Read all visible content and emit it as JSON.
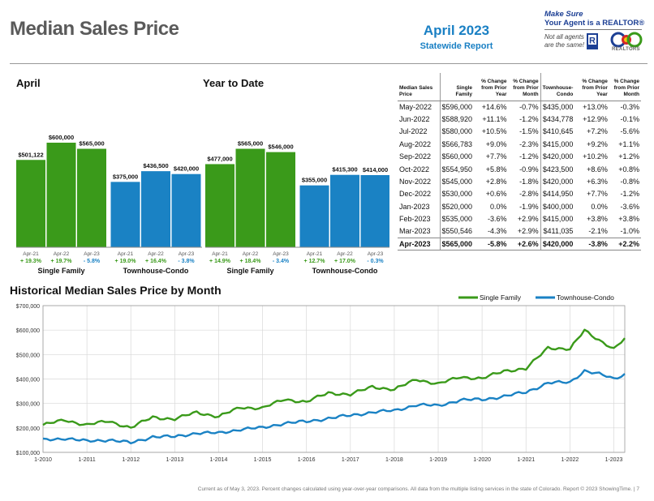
{
  "header": {
    "title": "Median Sales Price",
    "report_month": "April 2023",
    "report_sub": "Statewide Report"
  },
  "realtor": {
    "line1": "Make Sure",
    "line2": "Your Agent is a REALTOR®",
    "note1": "Not all agents",
    "note2": "are the same!",
    "org": "REALTORS"
  },
  "colors": {
    "single_family": "#3a9a1a",
    "townhouse": "#1a82c4",
    "heading_blue": "#1a80c4",
    "title_gray": "#5a5a5a"
  },
  "chart_data": [
    {
      "type": "bar",
      "title": "April",
      "groups": [
        {
          "name": "Single Family",
          "bars": [
            {
              "period": "Apr-21",
              "value": 501122,
              "label": "$501,122",
              "change": "+ 19.3%"
            },
            {
              "period": "Apr-22",
              "value": 600000,
              "label": "$600,000",
              "change": "+ 19.7%"
            },
            {
              "period": "Apr-23",
              "value": 565000,
              "label": "$565,000",
              "change": "- 5.8%"
            }
          ]
        },
        {
          "name": "Townhouse-Condo",
          "bars": [
            {
              "period": "Apr-21",
              "value": 375000,
              "label": "$375,000",
              "change": "+ 19.0%"
            },
            {
              "period": "Apr-22",
              "value": 436500,
              "label": "$436,500",
              "change": "+ 16.4%"
            },
            {
              "period": "Apr-23",
              "value": 420000,
              "label": "$420,000",
              "change": "- 3.8%"
            }
          ]
        }
      ]
    },
    {
      "type": "bar",
      "title": "Year to Date",
      "groups": [
        {
          "name": "Single Family",
          "bars": [
            {
              "period": "Apr-21",
              "value": 477000,
              "label": "$477,000",
              "change": "+ 14.9%"
            },
            {
              "period": "Apr-22",
              "value": 565000,
              "label": "$565,000",
              "change": "+ 18.4%"
            },
            {
              "period": "Apr-23",
              "value": 546000,
              "label": "$546,000",
              "change": "- 3.4%"
            }
          ]
        },
        {
          "name": "Townhouse-Condo",
          "bars": [
            {
              "period": "Apr-21",
              "value": 355000,
              "label": "$355,000",
              "change": "+ 12.7%"
            },
            {
              "period": "Apr-22",
              "value": 415300,
              "label": "$415,300",
              "change": "+ 17.0%"
            },
            {
              "period": "Apr-23",
              "value": 414000,
              "label": "$414,000",
              "change": "- 0.3%"
            }
          ]
        }
      ]
    },
    {
      "type": "table",
      "columns": [
        "Median Sales Price",
        "Single Family",
        "% Change from Prior Year",
        "% Change from Prior Month",
        "Townhouse-Condo",
        "% Change from Prior Year",
        "% Change from Prior Month"
      ],
      "rows": [
        [
          "May-2022",
          "$596,000",
          "+14.6%",
          "-0.7%",
          "$435,000",
          "+13.0%",
          "-0.3%"
        ],
        [
          "Jun-2022",
          "$588,920",
          "+11.1%",
          "-1.2%",
          "$434,778",
          "+12.9%",
          "-0.1%"
        ],
        [
          "Jul-2022",
          "$580,000",
          "+10.5%",
          "-1.5%",
          "$410,645",
          "+7.2%",
          "-5.6%"
        ],
        [
          "Aug-2022",
          "$566,783",
          "+9.0%",
          "-2.3%",
          "$415,000",
          "+9.2%",
          "+1.1%"
        ],
        [
          "Sep-2022",
          "$560,000",
          "+7.7%",
          "-1.2%",
          "$420,000",
          "+10.2%",
          "+1.2%"
        ],
        [
          "Oct-2022",
          "$554,950",
          "+5.8%",
          "-0.9%",
          "$423,500",
          "+8.6%",
          "+0.8%"
        ],
        [
          "Nov-2022",
          "$545,000",
          "+2.8%",
          "-1.8%",
          "$420,000",
          "+6.3%",
          "-0.8%"
        ],
        [
          "Dec-2022",
          "$530,000",
          "+0.6%",
          "-2.8%",
          "$414,950",
          "+7.7%",
          "-1.2%"
        ],
        [
          "Jan-2023",
          "$520,000",
          "0.0%",
          "-1.9%",
          "$400,000",
          "0.0%",
          "-3.6%"
        ],
        [
          "Feb-2023",
          "$535,000",
          "-3.6%",
          "+2.9%",
          "$415,000",
          "+3.8%",
          "+3.8%"
        ],
        [
          "Mar-2023",
          "$550,546",
          "-4.3%",
          "+2.9%",
          "$411,035",
          "-2.1%",
          "-1.0%"
        ],
        [
          "Apr-2023",
          "$565,000",
          "-5.8%",
          "+2.6%",
          "$420,000",
          "-3.8%",
          "+2.2%"
        ]
      ]
    },
    {
      "type": "line",
      "title": "Historical Median Sales Price by Month",
      "ylim": [
        100000,
        700000
      ],
      "y_ticks": [
        "$100,000",
        "$200,000",
        "$300,000",
        "$400,000",
        "$500,000",
        "$600,000",
        "$700,000"
      ],
      "x_ticks": [
        "1-2010",
        "1-2011",
        "1-2012",
        "1-2013",
        "1-2014",
        "1-2015",
        "1-2016",
        "1-2017",
        "1-2018",
        "1-2019",
        "1-2020",
        "1-2021",
        "1-2022",
        "1-2023"
      ],
      "x_start_year": 2010,
      "x_end": "2023-04",
      "grid": true,
      "legend_position": "top-right",
      "series": [
        {
          "name": "Single Family",
          "color": "#3a9a1a",
          "anchors": [
            [
              "2010-01",
              212000
            ],
            [
              "2010-07",
              232000
            ],
            [
              "2011-01",
              212000
            ],
            [
              "2011-07",
              228000
            ],
            [
              "2012-01",
              200000
            ],
            [
              "2012-07",
              245000
            ],
            [
              "2013-01",
              235000
            ],
            [
              "2013-07",
              265000
            ],
            [
              "2014-01",
              245000
            ],
            [
              "2014-07",
              285000
            ],
            [
              "2015-01",
              280000
            ],
            [
              "2015-07",
              318000
            ],
            [
              "2016-01",
              305000
            ],
            [
              "2016-07",
              345000
            ],
            [
              "2017-01",
              335000
            ],
            [
              "2017-07",
              370000
            ],
            [
              "2018-01",
              355000
            ],
            [
              "2018-07",
              400000
            ],
            [
              "2019-01",
              378000
            ],
            [
              "2019-07",
              410000
            ],
            [
              "2020-01",
              400000
            ],
            [
              "2020-07",
              435000
            ],
            [
              "2021-01",
              440000
            ],
            [
              "2021-07",
              530000
            ],
            [
              "2022-01",
              520000
            ],
            [
              "2022-05",
              600000
            ],
            [
              "2022-09",
              560000
            ],
            [
              "2023-01",
              520000
            ],
            [
              "2023-04",
              565000
            ]
          ]
        },
        {
          "name": "Townhouse-Condo",
          "color": "#1a82c4",
          "anchors": [
            [
              "2010-01",
              150000
            ],
            [
              "2010-07",
              158000
            ],
            [
              "2011-01",
              145000
            ],
            [
              "2011-07",
              152000
            ],
            [
              "2012-01",
              138000
            ],
            [
              "2012-07",
              165000
            ],
            [
              "2013-01",
              163000
            ],
            [
              "2013-07",
              180000
            ],
            [
              "2014-01",
              178000
            ],
            [
              "2014-07",
              195000
            ],
            [
              "2015-01",
              200000
            ],
            [
              "2015-07",
              220000
            ],
            [
              "2016-01",
              225000
            ],
            [
              "2016-07",
              240000
            ],
            [
              "2017-01",
              250000
            ],
            [
              "2017-07",
              265000
            ],
            [
              "2018-01",
              270000
            ],
            [
              "2018-07",
              295000
            ],
            [
              "2019-01",
              290000
            ],
            [
              "2019-07",
              315000
            ],
            [
              "2020-01",
              315000
            ],
            [
              "2020-07",
              330000
            ],
            [
              "2021-01",
              345000
            ],
            [
              "2021-07",
              385000
            ],
            [
              "2022-01",
              385000
            ],
            [
              "2022-05",
              435000
            ],
            [
              "2022-09",
              420000
            ],
            [
              "2023-01",
              400000
            ],
            [
              "2023-04",
              420000
            ]
          ]
        }
      ]
    }
  ],
  "footer": "Current as of May 3, 2023. Percent changes calculated using year-over-year comparisons. All data from the multiple listing services in the state of Colorado. Report © 2023 ShowingTime. | 7"
}
